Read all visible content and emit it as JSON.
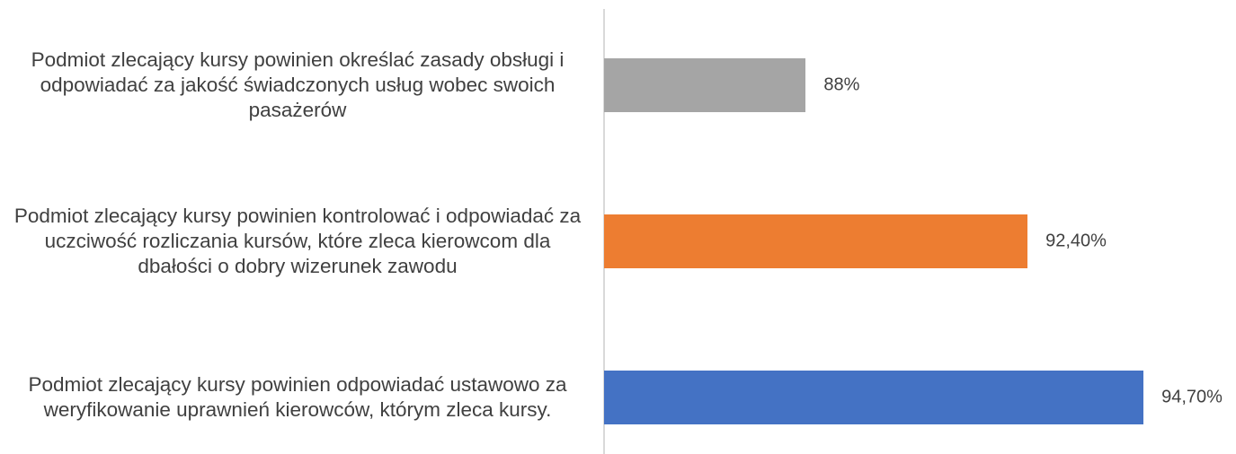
{
  "chart_data": {
    "type": "barh",
    "categories": [
      "Podmiot zlecający kursy powinien określać zasady obsługi i odpowiadać za jakość świadczonych usług wobec swoich pasażerów",
      "Podmiot zlecający kursy powinien kontrolować i odpowiadać za uczciwość rozliczania kursów, które zleca kierowcom dla dbałości o dobry wizerunek zawodu",
      "Podmiot zlecający kursy powinien odpowiadać ustawowo za weryfikowanie uprawnień kierowców, którym zleca kursy."
    ],
    "values": [
      88,
      92.4,
      94.7
    ],
    "value_labels": [
      "88%",
      "92,40%",
      "94,70%"
    ],
    "colors": [
      "#a5a5a5",
      "#ed7d31",
      "#4472c4"
    ],
    "xlim": [
      84,
      96
    ]
  }
}
